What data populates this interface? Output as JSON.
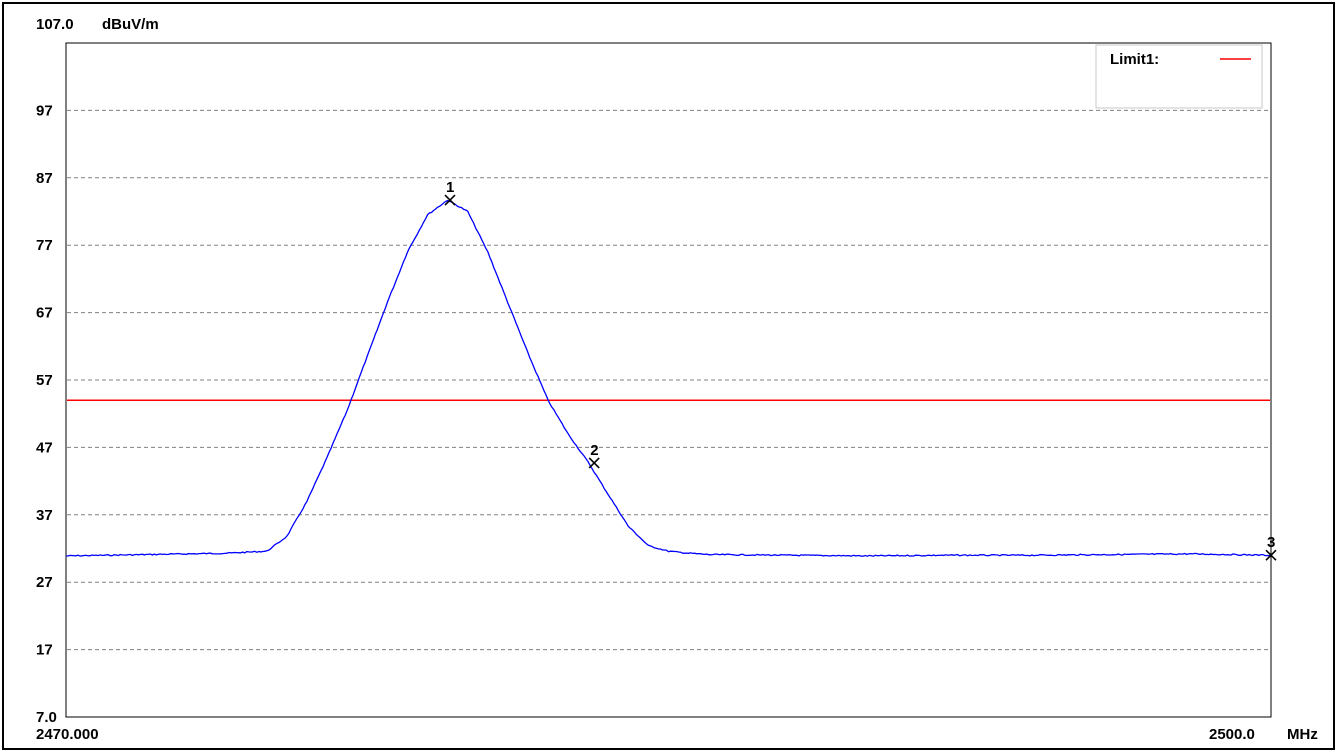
{
  "chart_data": {
    "type": "line",
    "ylabel": "dBuV/m",
    "xunit": "MHz",
    "xlim": [
      2470.0,
      2500.0
    ],
    "ylim": [
      7.0,
      107.0
    ],
    "x_tick_labels": [
      "2470.000",
      "2500.0"
    ],
    "y_tick_labels": [
      "107.0",
      "97",
      "87",
      "77",
      "67",
      "57",
      "47",
      "37",
      "27",
      "17",
      "7.0"
    ],
    "y_grid_values": [
      97,
      87,
      77,
      67,
      57,
      47,
      37,
      27,
      17
    ],
    "grid": true,
    "legend": {
      "placement": "top-right",
      "label": "Limit1:",
      "color": "#ff0000"
    },
    "limit_line": {
      "name": "Limit1",
      "y": 54.0,
      "color": "#ff0000"
    },
    "series": [
      {
        "color": "#0000ff",
        "x": [
          2470.0,
          2471.0,
          2472.0,
          2473.0,
          2474.0,
          2475.0,
          2475.5,
          2476.0,
          2476.5,
          2477.0,
          2477.5,
          2478.0,
          2478.5,
          2479.0,
          2479.5,
          2480.0,
          2480.5,
          2481.0,
          2481.5,
          2482.0,
          2482.5,
          2483.0,
          2483.5,
          2484.0,
          2484.5,
          2485.0,
          2485.5,
          2486.0,
          2488.0,
          2490.0,
          2492.0,
          2494.0,
          2496.0,
          2498.0,
          2500.0
        ],
        "y": [
          30.9,
          31.0,
          31.1,
          31.2,
          31.3,
          31.6,
          33.8,
          39.0,
          45.5,
          52.5,
          60.5,
          68.5,
          76.0,
          81.5,
          83.7,
          82.0,
          76.0,
          68.5,
          61.0,
          54.0,
          49.0,
          44.8,
          40.0,
          35.3,
          32.4,
          31.6,
          31.3,
          31.1,
          31.0,
          30.9,
          31.0,
          31.0,
          31.1,
          31.2,
          31.0
        ]
      }
    ],
    "markers": [
      {
        "label": "1",
        "x": 2479.56,
        "y": 83.7
      },
      {
        "label": "2",
        "x": 2483.15,
        "y": 44.7
      },
      {
        "label": "3",
        "x": 2500.0,
        "y": 31.0
      }
    ]
  }
}
